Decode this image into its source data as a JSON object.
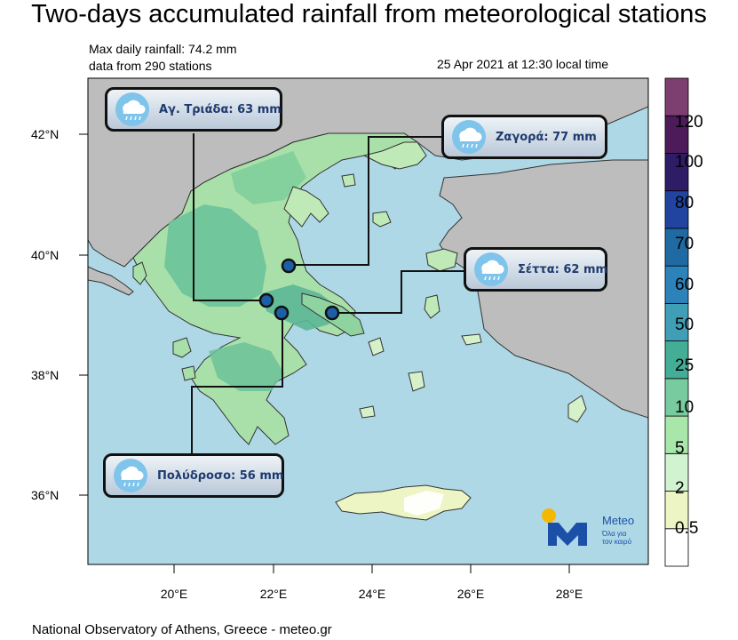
{
  "title": "Two-days accumulated rainfall from meteorological stations",
  "info": {
    "max_line": "Max daily rainfall: 74.2 mm",
    "stations_line": "data from 290 stations",
    "timestamp": "25 Apr 2021 at 12:30 local time"
  },
  "axes": {
    "lat_labels": [
      "42°N",
      "40°N",
      "38°N",
      "36°N"
    ],
    "lon_labels": [
      "20°E",
      "22°E",
      "24°E",
      "26°E",
      "28°E"
    ]
  },
  "colorbar": {
    "labels": [
      "0.5",
      "2",
      "5",
      "10",
      "25",
      "50",
      "60",
      "70",
      "80",
      "100",
      "120"
    ],
    "colors": [
      "#ffffff",
      "#eef5c5",
      "#d2f3cf",
      "#a8e6a9",
      "#78cb9e",
      "#44ad96",
      "#409fb7",
      "#2b83b9",
      "#1f6aa2",
      "#2144a0",
      "#2e1d66",
      "#4d1b5a",
      "#7d3f70"
    ]
  },
  "callouts": [
    {
      "text": "Αγ. Τριάδα: 63 mm",
      "icon": "rain-cloud-icon"
    },
    {
      "text": "Ζαγορά: 77 mm",
      "icon": "rain-cloud-icon"
    },
    {
      "text": "Σέττα: 62 mm",
      "icon": "rain-cloud-icon"
    },
    {
      "text": "Πολύδροσο: 56 mm",
      "icon": "rain-cloud-icon"
    }
  ],
  "logo": {
    "brand": "Meteo",
    "tagline": "Όλα για τον καιρό",
    "icon": "meteo-m-logo"
  },
  "footer": "National Observatory of Athens, Greece - meteo.gr",
  "colors": {
    "sea": "#aed8e6",
    "land_other": "#bdbdbd",
    "land_low": "#a9dfa8",
    "land_mid": "#6cc399",
    "accent": "#1c4fa8"
  }
}
